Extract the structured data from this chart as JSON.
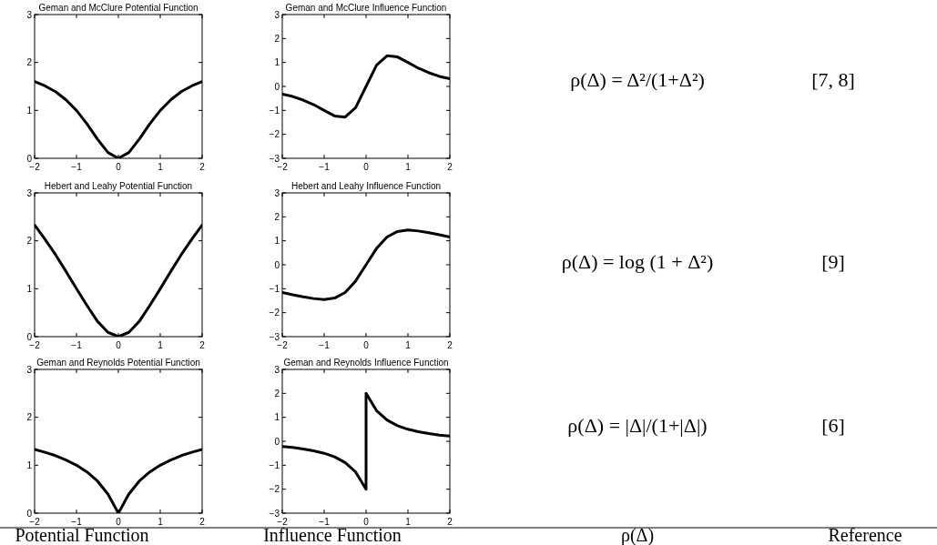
{
  "chart_data": [
    {
      "type": "line",
      "title": "Geman and McClure Potential Function",
      "x": [
        -2,
        -1.75,
        -1.5,
        -1.25,
        -1,
        -0.75,
        -0.5,
        -0.25,
        0,
        0.25,
        0.5,
        0.75,
        1,
        1.25,
        1.5,
        1.75,
        2
      ],
      "series": [
        {
          "color": "#000000",
          "values": [
            1.6,
            1.51,
            1.39,
            1.22,
            1,
            0.72,
            0.4,
            0.12,
            0,
            0.12,
            0.4,
            0.72,
            1,
            1.22,
            1.39,
            1.51,
            1.6
          ]
        }
      ],
      "xlim": [
        -2,
        2
      ],
      "xticks": [
        -2,
        -1,
        0,
        1,
        2
      ],
      "ylim": [
        0,
        3
      ],
      "yticks": [
        0,
        1,
        2,
        3
      ],
      "grid": false
    },
    {
      "type": "line",
      "title": "Geman and McClure Influence Function",
      "x": [
        -2,
        -1.75,
        -1.5,
        -1.25,
        -1,
        -0.75,
        -0.5,
        -0.25,
        0,
        0.25,
        0.5,
        0.75,
        1,
        1.25,
        1.5,
        1.75,
        2
      ],
      "series": [
        {
          "color": "#000000",
          "values": [
            -0.32,
            -0.42,
            -0.57,
            -0.76,
            -1,
            -1.23,
            -1.28,
            -0.89,
            0,
            0.89,
            1.28,
            1.23,
            1,
            0.76,
            0.57,
            0.42,
            0.32
          ]
        }
      ],
      "xlim": [
        -2,
        2
      ],
      "xticks": [
        -2,
        -1,
        0,
        1,
        2
      ],
      "ylim": [
        -3,
        3
      ],
      "yticks": [
        -3,
        -2,
        -1,
        0,
        1,
        2,
        3
      ],
      "grid": false
    },
    {
      "type": "line",
      "title": "Hebert and Leahy Potential Function",
      "x": [
        -2,
        -1.75,
        -1.5,
        -1.25,
        -1,
        -0.75,
        -0.5,
        -0.25,
        0,
        0.25,
        0.5,
        0.75,
        1,
        1.25,
        1.5,
        1.75,
        2
      ],
      "series": [
        {
          "color": "#000000",
          "values": [
            2.33,
            2.03,
            1.71,
            1.36,
            1,
            0.65,
            0.32,
            0.09,
            0,
            0.09,
            0.32,
            0.65,
            1,
            1.36,
            1.71,
            2.03,
            2.33
          ]
        }
      ],
      "xlim": [
        -2,
        2
      ],
      "xticks": [
        -2,
        -1,
        0,
        1,
        2
      ],
      "ylim": [
        0,
        3
      ],
      "yticks": [
        0,
        1,
        2,
        3
      ],
      "grid": false
    },
    {
      "type": "line",
      "title": "Hebert and Leahy Influence Function",
      "x": [
        -2,
        -1.75,
        -1.5,
        -1.25,
        -1,
        -0.75,
        -0.5,
        -0.25,
        0,
        0.25,
        0.5,
        0.75,
        1,
        1.25,
        1.5,
        1.75,
        2
      ],
      "series": [
        {
          "color": "#000000",
          "values": [
            -1.16,
            -1.25,
            -1.34,
            -1.41,
            -1.45,
            -1.39,
            -1.16,
            -0.68,
            0,
            0.68,
            1.16,
            1.39,
            1.45,
            1.41,
            1.34,
            1.25,
            1.16
          ]
        }
      ],
      "xlim": [
        -2,
        2
      ],
      "xticks": [
        -2,
        -1,
        0,
        1,
        2
      ],
      "ylim": [
        -3,
        3
      ],
      "yticks": [
        -3,
        -2,
        -1,
        0,
        1,
        2,
        3
      ],
      "grid": false
    },
    {
      "type": "line",
      "title": "Geman and Reynolds Potential Function",
      "x": [
        -2,
        -1.75,
        -1.5,
        -1.25,
        -1,
        -0.75,
        -0.5,
        -0.25,
        0,
        0.25,
        0.5,
        0.75,
        1,
        1.25,
        1.5,
        1.75,
        2
      ],
      "series": [
        {
          "color": "#000000",
          "values": [
            1.33,
            1.27,
            1.2,
            1.11,
            1,
            0.86,
            0.67,
            0.4,
            0,
            0.4,
            0.67,
            0.86,
            1,
            1.11,
            1.2,
            1.27,
            1.33
          ]
        }
      ],
      "xlim": [
        -2,
        2
      ],
      "xticks": [
        -2,
        -1,
        0,
        1,
        2
      ],
      "ylim": [
        0,
        3
      ],
      "yticks": [
        0,
        1,
        2,
        3
      ],
      "grid": false
    },
    {
      "type": "line",
      "title": "Geman and Reynolds Influence Function",
      "x": [
        -2,
        -1.75,
        -1.5,
        -1.25,
        -1,
        -0.75,
        -0.5,
        -0.25,
        0,
        0,
        0.25,
        0.5,
        0.75,
        1,
        1.25,
        1.5,
        1.75,
        2
      ],
      "series": [
        {
          "color": "#000000",
          "values": [
            -0.22,
            -0.26,
            -0.32,
            -0.4,
            -0.5,
            -0.65,
            -0.89,
            -1.28,
            -2,
            2,
            1.28,
            0.89,
            0.65,
            0.5,
            0.4,
            0.32,
            0.26,
            0.22
          ]
        }
      ],
      "xlim": [
        -2,
        2
      ],
      "xticks": [
        -2,
        -1,
        0,
        1,
        2
      ],
      "ylim": [
        -3,
        3
      ],
      "yticks": [
        -3,
        -2,
        -1,
        0,
        1,
        2,
        3
      ],
      "grid": false
    },
    {
      "type": "other",
      "annotations": [
        "Potential Function",
        "Influence Function",
        "ρ(Δ)",
        "Reference",
        "ρ(Δ) = Δ²/(1+Δ²)",
        "[7, 8]",
        "ρ(Δ) = log (1 + Δ²)",
        "[9]",
        "ρ(Δ) = |Δ|/(1+|Δ|)",
        "[6]"
      ]
    }
  ]
}
